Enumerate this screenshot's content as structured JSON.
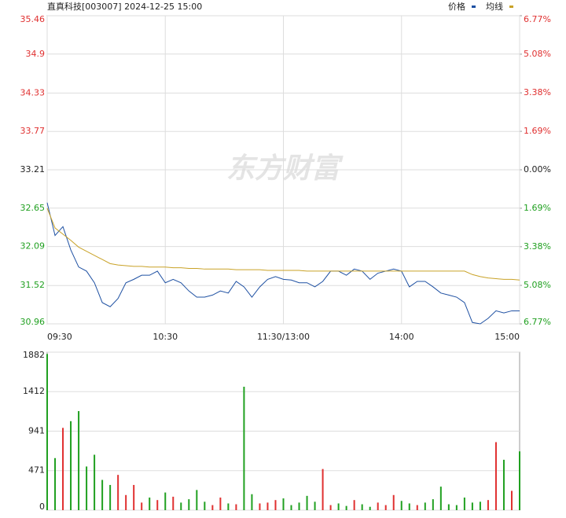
{
  "chart_data": [
    {
      "type": "line",
      "title": "直真科技[003007] 2024-12-25 15:00",
      "watermark": "东方财富",
      "x": [
        0,
        4,
        8,
        12,
        16,
        20,
        24,
        28,
        32,
        36,
        40,
        44,
        48,
        52,
        56,
        60,
        64,
        68,
        72,
        76,
        80,
        84,
        88,
        92,
        96,
        100,
        104,
        108,
        112,
        116,
        120,
        124,
        128,
        132,
        136,
        140,
        144,
        148,
        152,
        156,
        160,
        164,
        168,
        172,
        176,
        180,
        184,
        188,
        192,
        196,
        200,
        204,
        208,
        212,
        216,
        220,
        224,
        228,
        232,
        236,
        240
      ],
      "xlim": [
        0,
        240
      ],
      "xticks": [
        {
          "value": 0,
          "label": "09:30"
        },
        {
          "value": 60,
          "label": "10:30"
        },
        {
          "value": 120,
          "label": "11:30/13:00"
        },
        {
          "value": 180,
          "label": "14:00"
        },
        {
          "value": 240,
          "label": "15:00"
        }
      ],
      "ylim": [
        30.96,
        35.46
      ],
      "yticks": [
        35.46,
        34.9,
        34.33,
        33.77,
        33.21,
        32.65,
        32.09,
        31.52,
        30.96
      ],
      "y2lim": [
        -6.77,
        6.77
      ],
      "y2ticks": [
        {
          "value": 6.77,
          "label": "6.77%"
        },
        {
          "value": 5.08,
          "label": "5.08%"
        },
        {
          "value": 3.38,
          "label": "3.38%"
        },
        {
          "value": 1.69,
          "label": "1.69%"
        },
        {
          "value": 0,
          "label": "0.00%"
        },
        {
          "value": -1.69,
          "label": "1.69%"
        },
        {
          "value": -3.38,
          "label": "3.38%"
        },
        {
          "value": -5.08,
          "label": "5.08%"
        },
        {
          "value": -6.77,
          "label": "6.77%"
        }
      ],
      "grid": true,
      "series": [
        {
          "name": "价格",
          "color": "#1e50a2",
          "values": [
            32.73,
            32.25,
            32.38,
            32.04,
            31.79,
            31.73,
            31.56,
            31.27,
            31.21,
            31.33,
            31.56,
            31.61,
            31.67,
            31.67,
            31.73,
            31.56,
            31.61,
            31.56,
            31.44,
            31.35,
            31.35,
            31.38,
            31.44,
            31.41,
            31.58,
            31.5,
            31.35,
            31.5,
            31.61,
            31.65,
            31.61,
            31.6,
            31.56,
            31.56,
            31.5,
            31.58,
            31.73,
            31.73,
            31.67,
            31.76,
            31.73,
            31.61,
            31.7,
            31.73,
            31.76,
            31.73,
            31.5,
            31.58,
            31.58,
            31.5,
            31.41,
            31.38,
            31.35,
            31.27,
            30.98,
            30.96,
            31.04,
            31.15,
            31.12,
            31.15,
            31.15
          ]
        },
        {
          "name": "均线",
          "color": "#c9a227",
          "values": [
            32.65,
            32.36,
            32.27,
            32.18,
            32.08,
            32.02,
            31.96,
            31.9,
            31.84,
            31.82,
            31.81,
            31.8,
            31.8,
            31.79,
            31.79,
            31.79,
            31.78,
            31.78,
            31.77,
            31.77,
            31.76,
            31.76,
            31.76,
            31.76,
            31.75,
            31.75,
            31.75,
            31.75,
            31.74,
            31.74,
            31.74,
            31.74,
            31.74,
            31.73,
            31.73,
            31.73,
            31.73,
            31.73,
            31.73,
            31.73,
            31.73,
            31.73,
            31.73,
            31.73,
            31.73,
            31.73,
            31.73,
            31.73,
            31.73,
            31.73,
            31.73,
            31.73,
            31.73,
            31.73,
            31.68,
            31.65,
            31.63,
            31.62,
            31.61,
            31.61,
            31.6
          ]
        }
      ]
    },
    {
      "type": "bar",
      "x": [
        0,
        4,
        8,
        12,
        16,
        20,
        24,
        28,
        32,
        36,
        40,
        44,
        48,
        52,
        56,
        60,
        64,
        68,
        72,
        76,
        80,
        84,
        88,
        92,
        96,
        100,
        104,
        108,
        112,
        116,
        120,
        124,
        128,
        132,
        136,
        140,
        144,
        148,
        152,
        156,
        160,
        164,
        168,
        172,
        176,
        180,
        184,
        188,
        192,
        196,
        200,
        204,
        208,
        212,
        216,
        220,
        224,
        228,
        232,
        236,
        240
      ],
      "xlim": [
        0,
        240
      ],
      "ylim": [
        0,
        1882
      ],
      "yticks": [
        1882,
        1412,
        941,
        471,
        0
      ],
      "up_color": "#e03030",
      "down_color": "#20a020",
      "values": [
        1860,
        620,
        980,
        1060,
        1180,
        520,
        660,
        360,
        300,
        420,
        180,
        300,
        90,
        150,
        120,
        210,
        160,
        90,
        130,
        240,
        100,
        60,
        150,
        80,
        70,
        1470,
        190,
        80,
        90,
        120,
        140,
        60,
        90,
        170,
        100,
        490,
        60,
        80,
        50,
        120,
        70,
        40,
        90,
        60,
        180,
        110,
        80,
        60,
        90,
        130,
        280,
        70,
        60,
        150,
        90,
        100,
        120,
        810,
        600,
        230,
        700
      ]
    }
  ]
}
